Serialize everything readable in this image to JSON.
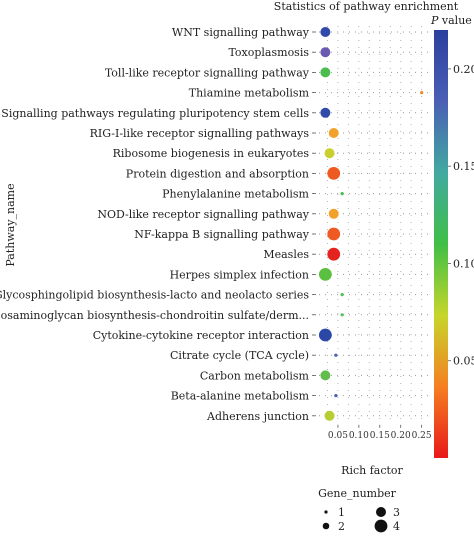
{
  "chart_data": {
    "type": "scatter",
    "title": "Statistics of pathway enrichment",
    "xlabel": "Rich factor",
    "ylabel": "Pathway_name",
    "xlim": [
      0,
      0.27
    ],
    "x_ticks": [
      0.05,
      0.1,
      0.15,
      0.2,
      0.25
    ],
    "x_tick_labels": [
      "0.05",
      "0.10",
      "0.15",
      "0.20",
      "0.25"
    ],
    "grid": true,
    "colorbar": {
      "title_italic": "P",
      "title_rest": " value",
      "range": [
        0.0,
        0.22
      ],
      "ticks": [
        0.05,
        0.1,
        0.15,
        0.2
      ],
      "tick_labels": [
        "0.05",
        "0.10",
        "0.15",
        "0.20"
      ],
      "colors": [
        "#e8191a",
        "#f57f21",
        "#c6d62b",
        "#3fbf47",
        "#42a9a0",
        "#4a5fb5",
        "#2b3f9e"
      ]
    },
    "size_legend": {
      "title": "Gene_number",
      "entries": [
        {
          "label": "1",
          "value": 1
        },
        {
          "label": "2",
          "value": 2
        },
        {
          "label": "3",
          "value": 3
        },
        {
          "label": "4",
          "value": 4
        }
      ]
    },
    "points": [
      {
        "pathway": "WNT signalling pathway",
        "rich_factor": 0.02,
        "gene_number": 3,
        "p_value": 0.2,
        "color": "#2f4aa8"
      },
      {
        "pathway": "Toxoplasmosis",
        "rich_factor": 0.02,
        "gene_number": 3,
        "p_value": 0.19,
        "color": "#6a5bb0"
      },
      {
        "pathway": "Toll-like receptor signalling pathway",
        "rich_factor": 0.02,
        "gene_number": 3,
        "p_value": 0.11,
        "color": "#4cbc4f"
      },
      {
        "pathway": "Thiamine metabolism",
        "rich_factor": 0.25,
        "gene_number": 1,
        "p_value": 0.04,
        "color": "#f08b22"
      },
      {
        "pathway": "Signalling pathways regulating pluripotency stem cells",
        "rich_factor": 0.02,
        "gene_number": 3,
        "p_value": 0.2,
        "color": "#2f4aa8"
      },
      {
        "pathway": "RIG-I-like receptor signalling pathways",
        "rich_factor": 0.04,
        "gene_number": 3,
        "p_value": 0.05,
        "color": "#f2a22a"
      },
      {
        "pathway": "Ribosome biogenesis in eukaryotes",
        "rich_factor": 0.03,
        "gene_number": 3,
        "p_value": 0.07,
        "color": "#c9cf2c"
      },
      {
        "pathway": "Protein digestion and absorption",
        "rich_factor": 0.04,
        "gene_number": 4,
        "p_value": 0.03,
        "color": "#ee5a20"
      },
      {
        "pathway": "Phenylalanine metabolism",
        "rich_factor": 0.06,
        "gene_number": 1,
        "p_value": 0.1,
        "color": "#49c04f"
      },
      {
        "pathway": "NOD-like receptor signalling pathway",
        "rich_factor": 0.04,
        "gene_number": 3,
        "p_value": 0.05,
        "color": "#f2a22a"
      },
      {
        "pathway": "NF-kappa B signalling pathway",
        "rich_factor": 0.04,
        "gene_number": 4,
        "p_value": 0.03,
        "color": "#ef5a22"
      },
      {
        "pathway": "Measles",
        "rich_factor": 0.04,
        "gene_number": 4,
        "p_value": 0.01,
        "color": "#e4231f"
      },
      {
        "pathway": "Herpes simplex infection",
        "rich_factor": 0.02,
        "gene_number": 4,
        "p_value": 0.1,
        "color": "#5bbf3f"
      },
      {
        "pathway": "Glycosphingolipid biosynthesis-lacto and neolacto series",
        "rich_factor": 0.06,
        "gene_number": 1,
        "p_value": 0.1,
        "color": "#4ec157"
      },
      {
        "pathway": "Glycosaminoglycan biosynthesis-chondroitin sulfate/derm...",
        "rich_factor": 0.06,
        "gene_number": 1,
        "p_value": 0.1,
        "color": "#4ec157"
      },
      {
        "pathway": "Cytokine-cytokine receptor interaction",
        "rich_factor": 0.02,
        "gene_number": 4,
        "p_value": 0.2,
        "color": "#2b48a6"
      },
      {
        "pathway": "Citrate cycle (TCA cycle)",
        "rich_factor": 0.045,
        "gene_number": 1,
        "p_value": 0.19,
        "color": "#4a5fb5"
      },
      {
        "pathway": "Carbon metabolism",
        "rich_factor": 0.02,
        "gene_number": 3,
        "p_value": 0.1,
        "color": "#63bd4c"
      },
      {
        "pathway": "Beta-alanine metabolism",
        "rich_factor": 0.045,
        "gene_number": 1,
        "p_value": 0.19,
        "color": "#4a5fb5"
      },
      {
        "pathway": "Adherens junction",
        "rich_factor": 0.03,
        "gene_number": 3,
        "p_value": 0.07,
        "color": "#b7cd32"
      }
    ]
  }
}
